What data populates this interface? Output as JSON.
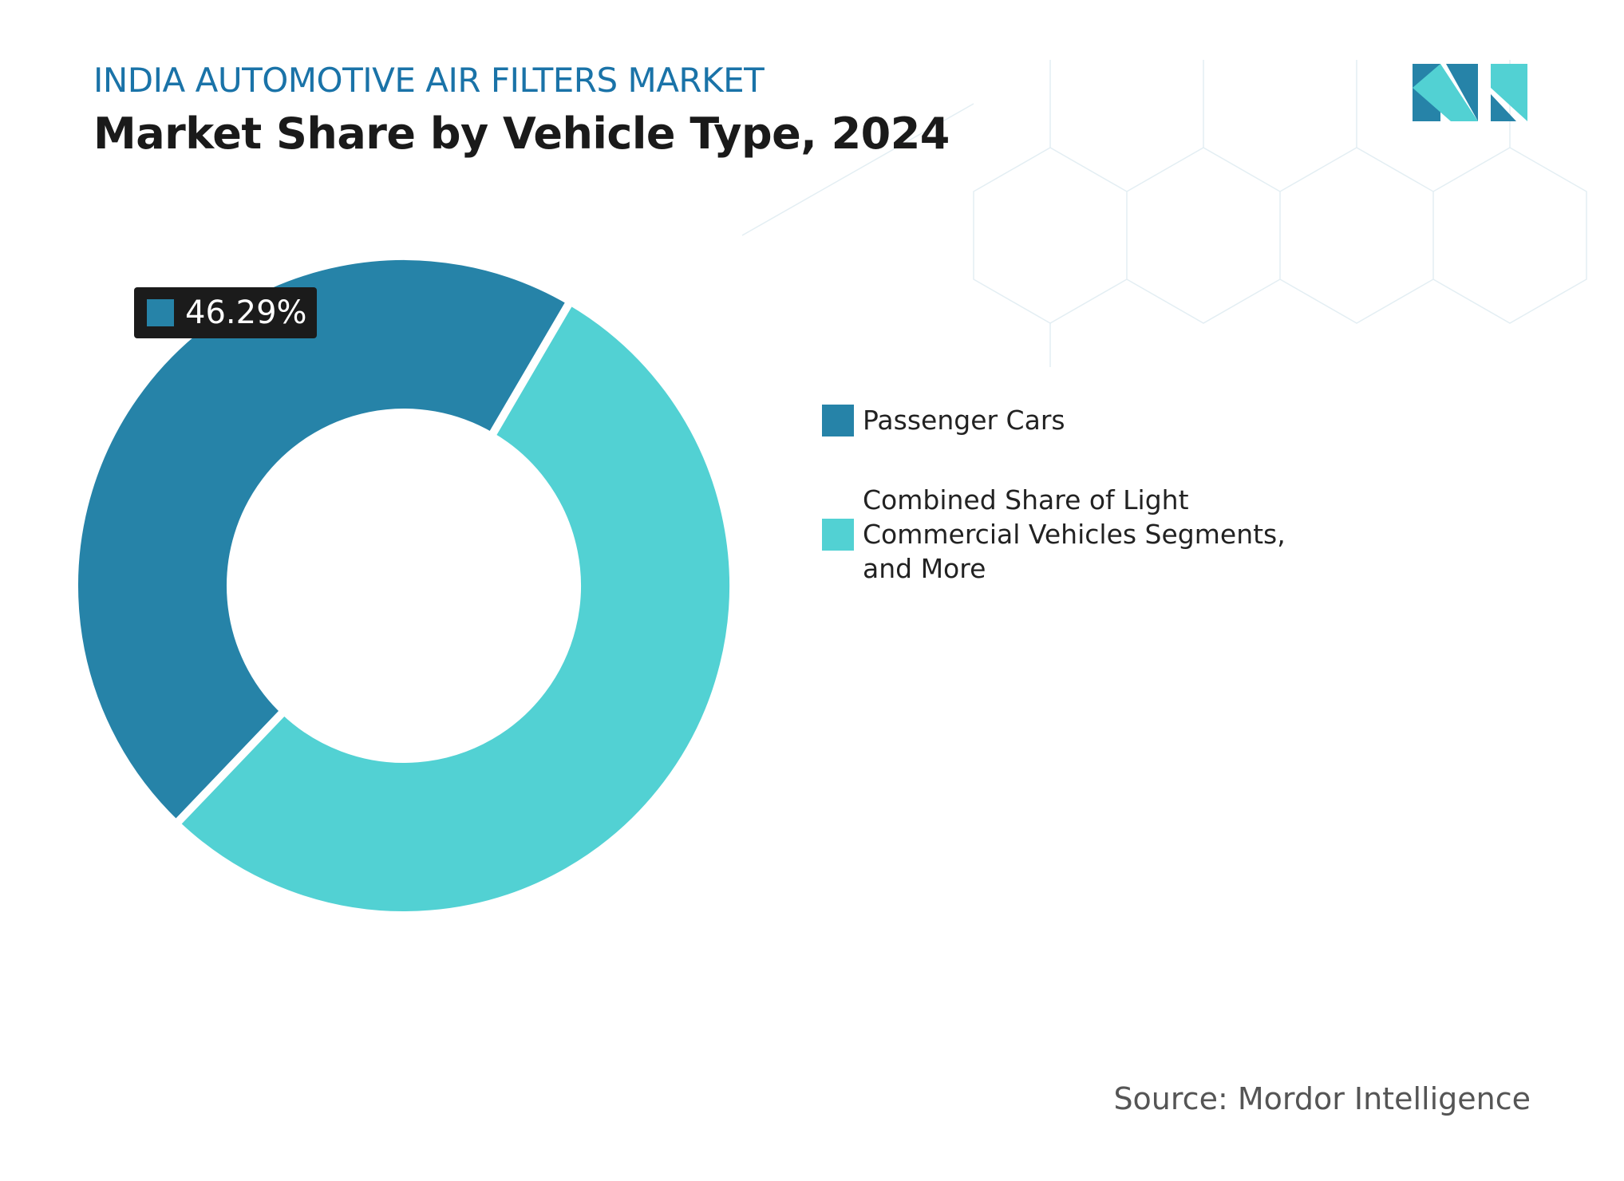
{
  "chart_data": {
    "type": "donut",
    "subtitle": "INDIA AUTOMOTIVE AIR FILTERS MARKET",
    "title": "Market Share by Vehicle Type, 2024",
    "categories": [
      "Passenger Cars",
      "Combined Share of Light Commercial Vehicles Segments, and More"
    ],
    "values": [
      46.29,
      53.71
    ],
    "value_labels": [
      "46.29%",
      null
    ],
    "colors": [
      "#2683a8",
      "#52d1d3"
    ],
    "source": "Source: Mordor Intelligence"
  }
}
